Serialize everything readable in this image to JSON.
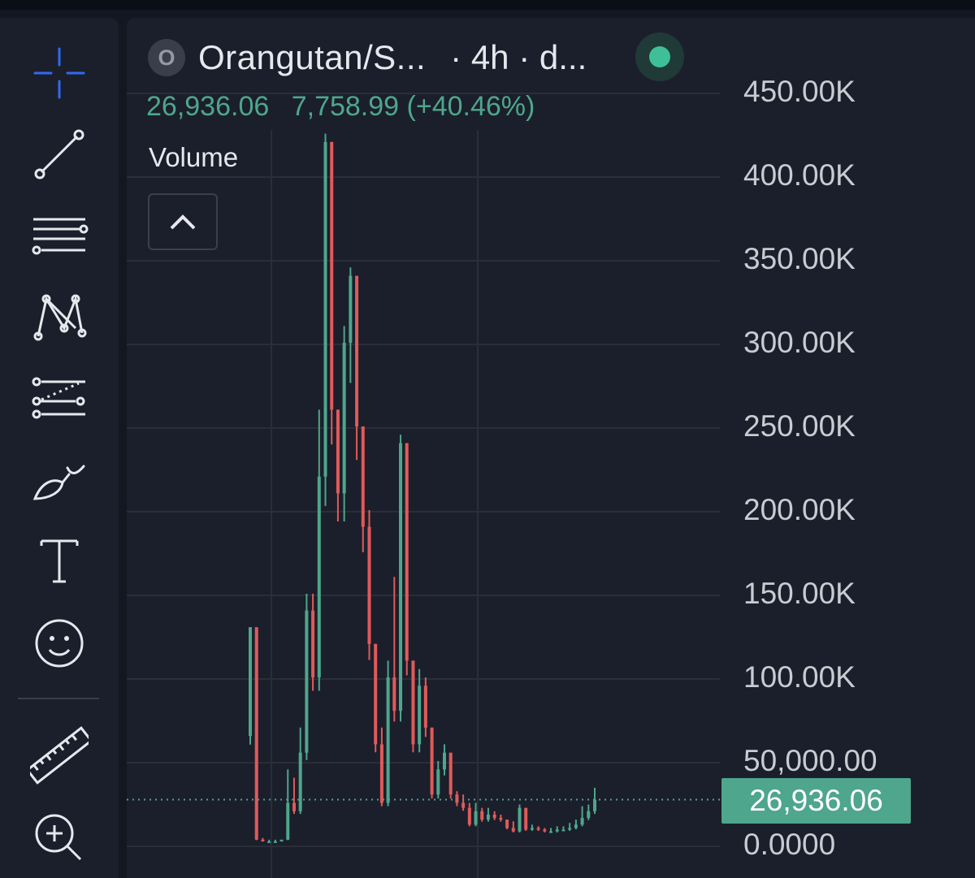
{
  "toolbar": {
    "tools": [
      "crosshair-icon",
      "trend-line-icon",
      "horizontal-lines-icon",
      "pattern-icon",
      "fib-icon",
      "brush-icon",
      "text-icon",
      "emoji-icon",
      "ruler-icon",
      "zoom-in-icon"
    ]
  },
  "legend": {
    "badge": "O",
    "symbol": "Orangutan/S...",
    "meta": "· 4h · d...",
    "close": "26,936.06",
    "change": "7,758.99 (+40.46%)",
    "volume_label": "Volume"
  },
  "colors": {
    "background": "#131722",
    "panel": "#1b1f2b",
    "up": "#4ea68c",
    "down": "#e05a5a",
    "grid": "#2a2e39",
    "live": "#3fbf97"
  },
  "price_axis": {
    "labels": [
      "450.00K",
      "400.00K",
      "350.00K",
      "300.00K",
      "250.00K",
      "200.00K",
      "150.00K",
      "100.00K",
      "50,000.00",
      "0.0000"
    ],
    "last_price": "26,936.06"
  },
  "chart_data": {
    "type": "candlestick",
    "timeframe": "4h",
    "ylim": [
      0,
      450000
    ],
    "last_price": 26936.06,
    "series": [
      {
        "name": "close",
        "values": [
          130000,
          3000,
          2000,
          2000,
          2000,
          3000,
          25000,
          20000,
          55000,
          140000,
          100000,
          220000,
          420000,
          260000,
          210000,
          300000,
          340000,
          250000,
          190000,
          120000,
          60000,
          25000,
          100000,
          80000,
          240000,
          110000,
          60000,
          95000,
          70000,
          30000,
          45000,
          55000,
          30000,
          25000,
          22000,
          12000,
          20000,
          15000,
          18000,
          16000,
          15000,
          10000,
          8000,
          22000,
          9000,
          10000,
          9000,
          8000,
          8000,
          9000,
          9000,
          10000,
          12000,
          16000,
          20000,
          26936
        ]
      },
      {
        "name": "high",
        "values": [
          130000,
          130000,
          4000,
          3000,
          3000,
          3000,
          45000,
          40000,
          70000,
          150000,
          150000,
          260000,
          425000,
          330000,
          260000,
          310000,
          345000,
          330000,
          250000,
          200000,
          90000,
          70000,
          110000,
          160000,
          245000,
          180000,
          110000,
          105000,
          100000,
          55000,
          50000,
          60000,
          40000,
          32000,
          30000,
          25000,
          25000,
          22000,
          22000,
          20000,
          18000,
          14000,
          14000,
          24000,
          12000,
          12000,
          11000,
          10000,
          10000,
          11000,
          11000,
          13000,
          15000,
          23000,
          24000,
          34000
        ]
      }
    ]
  }
}
